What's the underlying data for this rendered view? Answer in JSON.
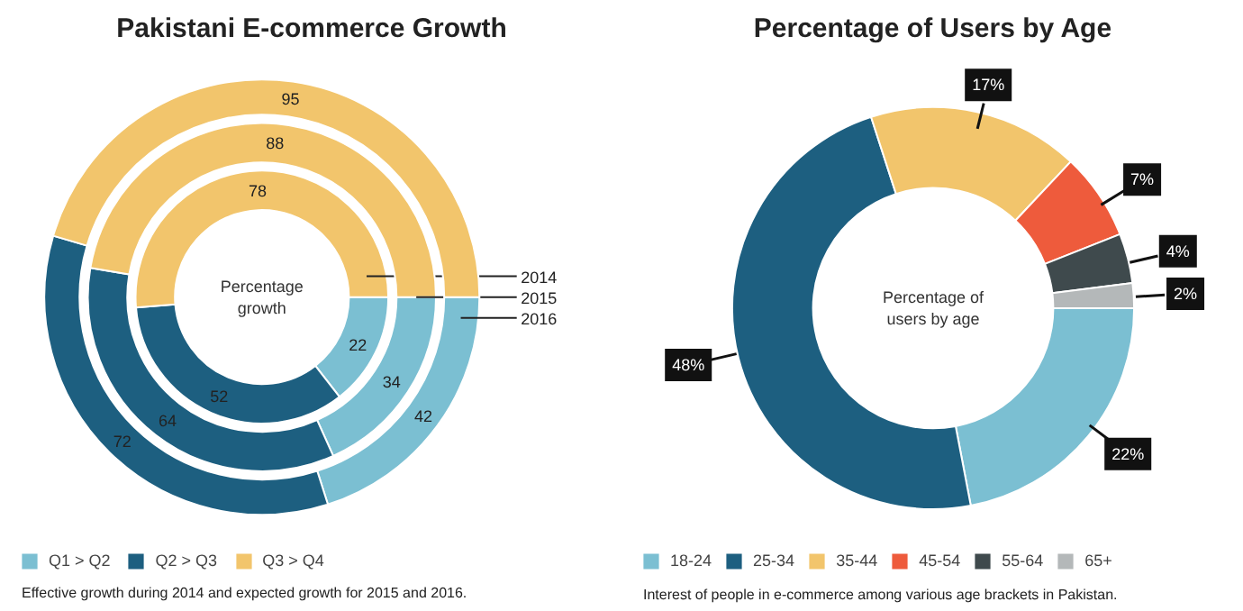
{
  "chart_data": [
    {
      "type": "donut",
      "title": "Pakistani E-commerce Growth",
      "categories": [
        "Q1 > Q2",
        "Q2 > Q3",
        "Q3 > Q4"
      ],
      "colors": [
        "#7bbfd2",
        "#1d5f80",
        "#f2c56c"
      ],
      "series": [
        {
          "name": "2014",
          "values": [
            22,
            52,
            78
          ]
        },
        {
          "name": "2015",
          "values": [
            34,
            64,
            88
          ]
        },
        {
          "name": "2016",
          "values": [
            42,
            72,
            95
          ]
        }
      ],
      "data_labels": true,
      "legend": "bottom",
      "annotations": [
        "Percentage\ngrowth",
        "Effective growth during 2014 and expected growth for 2015 and 2016."
      ]
    },
    {
      "type": "donut",
      "title": "Percentage of Users by Age",
      "categories": [
        "18-24",
        "25-34",
        "35-44",
        "45-54",
        "55-64",
        "65+"
      ],
      "colors": [
        "#7bbfd2",
        "#1d5f80",
        "#f2c56c",
        "#ee5b3c",
        "#3f4a4d",
        "#b4b8b9"
      ],
      "values": [
        22,
        48,
        17,
        7,
        4,
        2
      ],
      "value_labels": [
        "22%",
        "48%",
        "17%",
        "7%",
        "4%",
        "2%"
      ],
      "legend": "bottom",
      "annotations": [
        "Percentage of\nusers by age",
        "Interest of people in e-commerce among various age brackets in Pakistan."
      ]
    }
  ]
}
